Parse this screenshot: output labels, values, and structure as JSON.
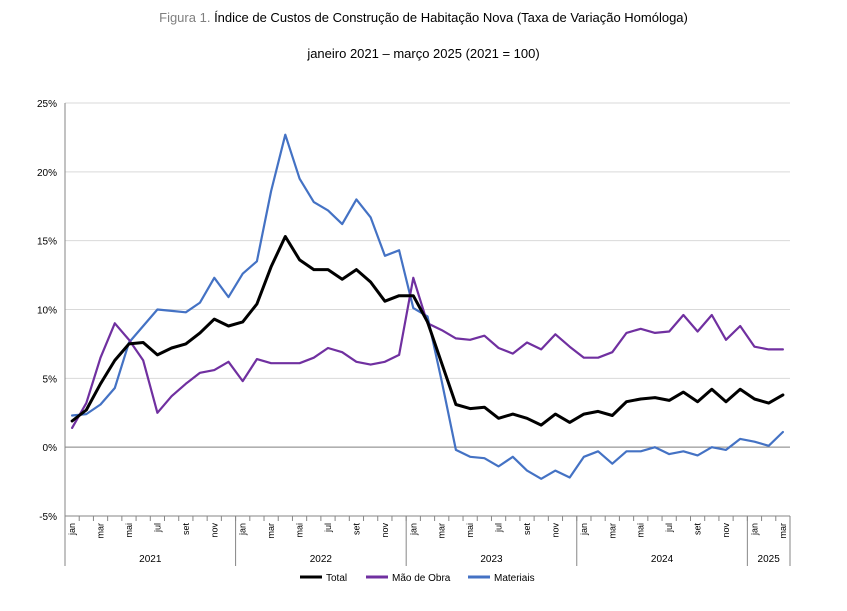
{
  "figure_label": "Figura 1.",
  "title": "Índice de Custos de Construção de Habitação Nova (Taxa de Variação Homóloga)",
  "subtitle": "janeiro 2021 – março 2025 (2021 = 100)",
  "chart_data": {
    "type": "line",
    "title": "Índice de Custos de Construção de Habitação Nova (Taxa de Variação Homóloga)",
    "subtitle": "janeiro 2021 – março 2025 (2021 = 100)",
    "xlabel": "",
    "ylabel": "",
    "ylim": [
      -5,
      25
    ],
    "yticks": [
      -5,
      0,
      5,
      10,
      15,
      20,
      25
    ],
    "ytick_labels": [
      "-5%",
      "0%",
      "5%",
      "10%",
      "15%",
      "20%",
      "25%"
    ],
    "grid": "horizontal",
    "legend": "bottom",
    "month_tick_labels": [
      "jan",
      "mar",
      "mai",
      "jul",
      "set",
      "nov",
      "jan",
      "mar",
      "mai",
      "jul",
      "set",
      "nov",
      "jan",
      "mar",
      "mai",
      "jul",
      "set",
      "nov",
      "jan",
      "mar",
      "mai",
      "jul",
      "set",
      "nov",
      "jan",
      "mar"
    ],
    "years": [
      "2021",
      "2022",
      "2023",
      "2024",
      "2025"
    ],
    "series": [
      {
        "name": "Total",
        "color": "#000000",
        "values": [
          1.9,
          2.7,
          4.6,
          6.3,
          7.5,
          7.6,
          6.7,
          7.2,
          7.5,
          8.3,
          9.3,
          8.8,
          9.1,
          10.4,
          13.1,
          15.3,
          13.6,
          12.9,
          12.9,
          12.2,
          12.9,
          12.0,
          10.6,
          11.0,
          11.0,
          9.1,
          6.1,
          3.1,
          2.8,
          2.9,
          2.1,
          2.4,
          2.1,
          1.6,
          2.4,
          1.8,
          2.4,
          2.6,
          2.3,
          3.3,
          3.5,
          3.6,
          3.4,
          4.0,
          3.3,
          4.2,
          3.3,
          4.2,
          3.5,
          3.2,
          3.8
        ]
      },
      {
        "name": "Mão de Obra",
        "color": "#7030a0",
        "values": [
          1.4,
          3.2,
          6.5,
          9.0,
          7.8,
          6.3,
          2.5,
          3.7,
          4.6,
          5.4,
          5.6,
          6.2,
          4.8,
          6.4,
          6.1,
          6.1,
          6.1,
          6.5,
          7.2,
          6.9,
          6.2,
          6.0,
          6.2,
          6.7,
          12.3,
          9.0,
          8.5,
          7.9,
          7.8,
          8.1,
          7.2,
          6.8,
          7.6,
          7.1,
          8.2,
          7.3,
          6.5,
          6.5,
          6.9,
          8.3,
          8.6,
          8.3,
          8.4,
          9.6,
          8.4,
          9.6,
          7.8,
          8.8,
          7.3,
          7.1,
          7.1
        ]
      },
      {
        "name": "Materiais",
        "color": "#4472c4",
        "values": [
          2.3,
          2.4,
          3.1,
          4.3,
          7.6,
          8.8,
          10.0,
          9.9,
          9.8,
          10.5,
          12.3,
          10.9,
          12.6,
          13.5,
          18.6,
          22.7,
          19.5,
          17.8,
          17.2,
          16.2,
          18.0,
          16.7,
          13.9,
          14.3,
          10.1,
          9.5,
          4.8,
          -0.2,
          -0.7,
          -0.8,
          -1.4,
          -0.7,
          -1.7,
          -2.3,
          -1.7,
          -2.2,
          -0.7,
          -0.3,
          -1.2,
          -0.3,
          -0.3,
          0.0,
          -0.5,
          -0.3,
          -0.6,
          0.0,
          -0.2,
          0.6,
          0.4,
          0.1,
          1.1
        ]
      }
    ]
  }
}
